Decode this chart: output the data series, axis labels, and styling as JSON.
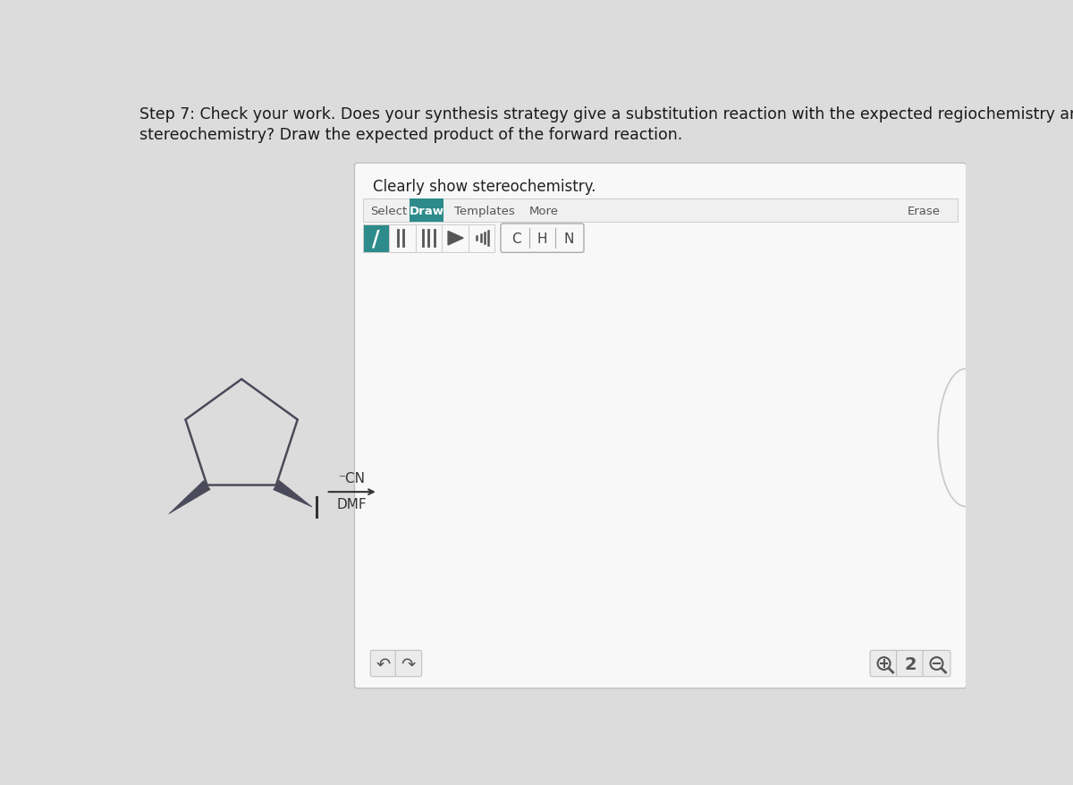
{
  "page_bg": "#dcdcdc",
  "title_text_line1": "Step 7: Check your work. Does your synthesis strategy give a substitution reaction with the expected regiochemistry and",
  "title_text_line2": "stereochemistry? Draw the expected product of the forward reaction.",
  "title_fontsize": 12.5,
  "title_color": "#1a1a1a",
  "clearly_show_text": "Clearly show stereochemistry.",
  "clearly_fontsize": 12,
  "panel_bg": "#f5f5f5",
  "panel_edge": "#c0c0c0",
  "toolbar_bg": "#f0f0f0",
  "toolbar_edge": "#cccccc",
  "draw_btn_bg": "#2d8b8b",
  "draw_btn_color": "#ffffff",
  "select_text": "Select",
  "draw_text": "Draw",
  "templates_text": "Templates",
  "more_text": "More",
  "erase_text": "Erase",
  "bond_btn_bg_selected": "#2d8b8b",
  "bond_btn_bg": "#f8f8f8",
  "bond_btn_edge": "#cccccc",
  "atom_labels": [
    "C",
    "H",
    "N"
  ],
  "reaction_label_top": "⁻CN",
  "reaction_label_bottom": "DMF",
  "mol_color": "#4a4a5a",
  "wedge_color": "#4a4a5a",
  "undo_symbols": [
    "↶",
    "↷"
  ],
  "zoom_symbols": [
    "🔍",
    "2",
    "🔍"
  ],
  "bottom_btn_bg": "#ebebeb",
  "bottom_btn_edge": "#c0c0c0"
}
